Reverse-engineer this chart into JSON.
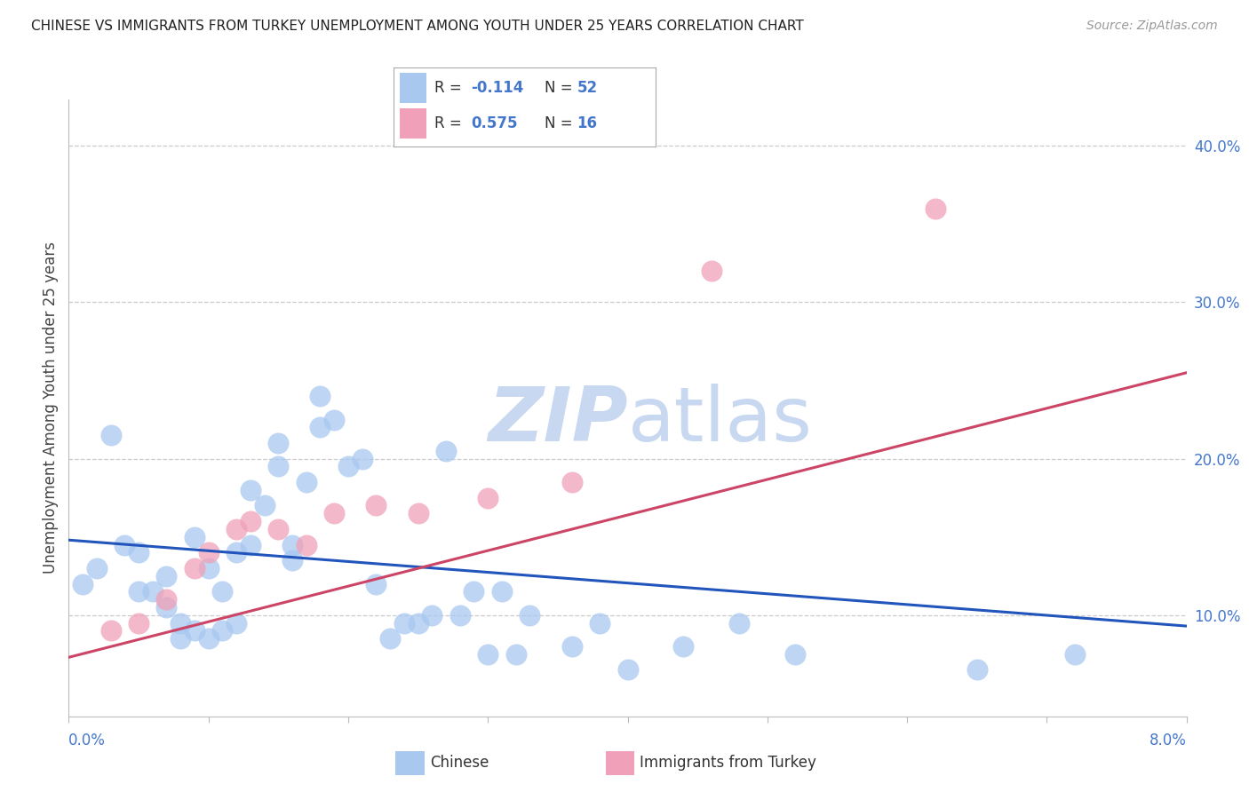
{
  "title": "CHINESE VS IMMIGRANTS FROM TURKEY UNEMPLOYMENT AMONG YOUTH UNDER 25 YEARS CORRELATION CHART",
  "source": "Source: ZipAtlas.com",
  "ylabel": "Unemployment Among Youth under 25 years",
  "xmin": 0.0,
  "xmax": 0.08,
  "ymin": 0.035,
  "ymax": 0.43,
  "yticks": [
    0.1,
    0.2,
    0.3,
    0.4
  ],
  "ytick_labels": [
    "10.0%",
    "20.0%",
    "30.0%",
    "40.0%"
  ],
  "chinese_color": "#a8c8f0",
  "turkey_color": "#f0a0b8",
  "chinese_line_color": "#2255bb",
  "turkey_line_color": "#cc4466",
  "tick_label_color": "#4477cc",
  "watermark_color": "#c8d8f0",
  "chinese_x": [
    0.001,
    0.002,
    0.003,
    0.004,
    0.005,
    0.005,
    0.006,
    0.007,
    0.007,
    0.008,
    0.008,
    0.009,
    0.009,
    0.01,
    0.01,
    0.011,
    0.011,
    0.012,
    0.012,
    0.013,
    0.013,
    0.014,
    0.015,
    0.015,
    0.016,
    0.016,
    0.017,
    0.018,
    0.018,
    0.019,
    0.02,
    0.021,
    0.022,
    0.023,
    0.024,
    0.025,
    0.026,
    0.027,
    0.028,
    0.029,
    0.03,
    0.031,
    0.032,
    0.033,
    0.036,
    0.038,
    0.04,
    0.044,
    0.048,
    0.052,
    0.065,
    0.072
  ],
  "chinese_y": [
    0.12,
    0.13,
    0.215,
    0.145,
    0.14,
    0.115,
    0.115,
    0.125,
    0.105,
    0.085,
    0.095,
    0.09,
    0.15,
    0.13,
    0.085,
    0.115,
    0.09,
    0.14,
    0.095,
    0.18,
    0.145,
    0.17,
    0.21,
    0.195,
    0.135,
    0.145,
    0.185,
    0.24,
    0.22,
    0.225,
    0.195,
    0.2,
    0.12,
    0.085,
    0.095,
    0.095,
    0.1,
    0.205,
    0.1,
    0.115,
    0.075,
    0.115,
    0.075,
    0.1,
    0.08,
    0.095,
    0.065,
    0.08,
    0.095,
    0.075,
    0.065,
    0.075
  ],
  "turkey_x": [
    0.003,
    0.005,
    0.007,
    0.009,
    0.01,
    0.012,
    0.013,
    0.015,
    0.017,
    0.019,
    0.022,
    0.025,
    0.03,
    0.036,
    0.046,
    0.062
  ],
  "turkey_y": [
    0.09,
    0.095,
    0.11,
    0.13,
    0.14,
    0.155,
    0.16,
    0.155,
    0.145,
    0.165,
    0.17,
    0.165,
    0.175,
    0.185,
    0.32,
    0.36
  ],
  "chinese_trend_x": [
    0.0,
    0.08
  ],
  "chinese_trend_y": [
    0.148,
    0.093
  ],
  "turkey_trend_x": [
    0.0,
    0.08
  ],
  "turkey_trend_y": [
    0.073,
    0.255
  ]
}
